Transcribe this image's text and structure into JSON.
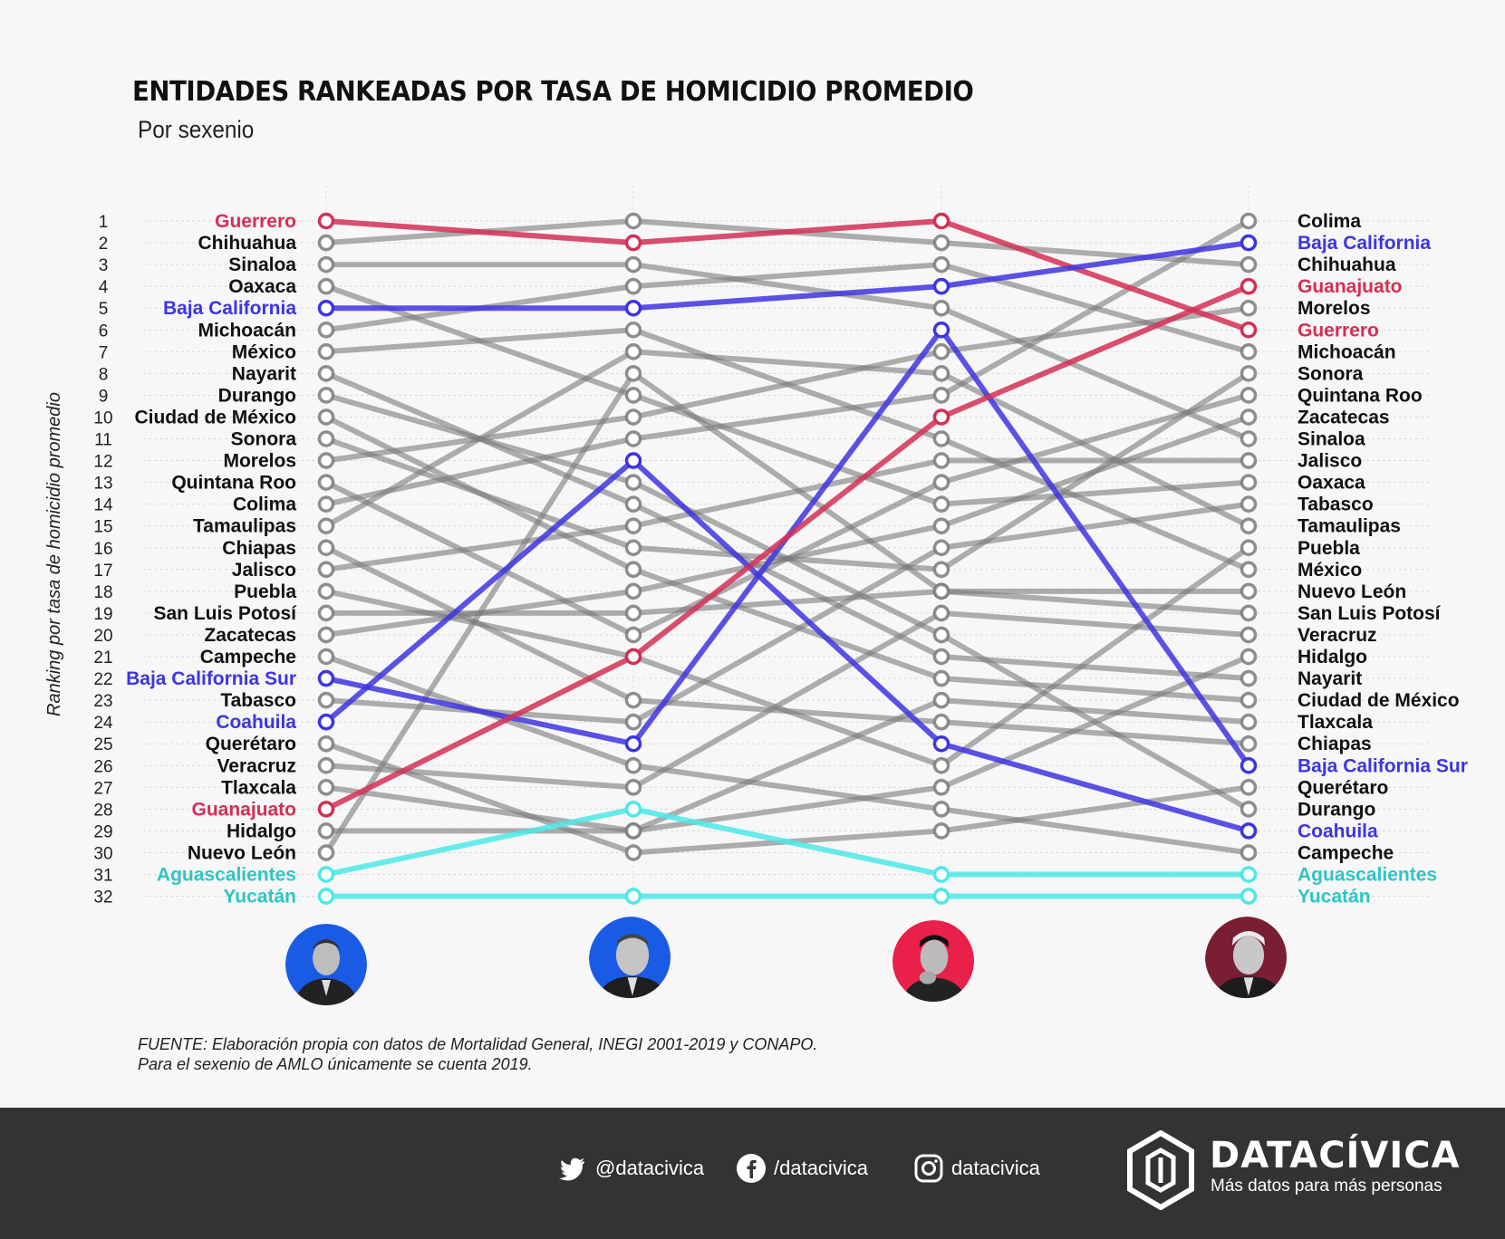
{
  "title": "ENTIDADES RANKEADAS POR TASA DE HOMICIDIO PROMEDIO",
  "subtitle": "Por sexenio",
  "y_axis_label": "Ranking por tasa de homicidio promedio",
  "source_line1": "FUENTE: Elaboración propia con datos de Mortalidad General, INEGI 2001-2019 y CONAPO.",
  "source_line2": "Para el sexenio de AMLO únicamente se cuenta 2019.",
  "colors": {
    "background": "#f7f7f7",
    "default_line": "#7a7a7a",
    "red": "#d32f55",
    "blue": "#3d35e0",
    "cyan": "#4de8e8",
    "cyan_text": "#2ec5c5",
    "footer_bg": "#333333",
    "portrait_fox": "#1a5be6",
    "portrait_calderon": "#1a5be6",
    "portrait_pena": "#e8204a",
    "portrait_amlo": "#7a1f33"
  },
  "portraits": [
    {
      "name": "fox-portrait",
      "color": "#1a5be6"
    },
    {
      "name": "calderon-portrait",
      "color": "#1a5be6"
    },
    {
      "name": "pena-nieto-portrait",
      "color": "#e8204a"
    },
    {
      "name": "amlo-portrait",
      "color": "#7a1f33"
    }
  ],
  "footer": {
    "twitter": "@datacivica",
    "facebook": "/datacivica",
    "instagram": "datacivica",
    "brand": "DATACÍVICA",
    "tagline": "Más datos para más personas"
  },
  "chart_data": {
    "type": "line",
    "ranks": [
      1,
      2,
      3,
      4,
      5,
      6,
      7,
      8,
      9,
      10,
      11,
      12,
      13,
      14,
      15,
      16,
      17,
      18,
      19,
      20,
      21,
      22,
      23,
      24,
      25,
      26,
      27,
      28,
      29,
      30,
      31,
      32
    ],
    "ylim": [
      1,
      32
    ],
    "grid": true,
    "left_labels": [
      "Guerrero",
      "Chihuahua",
      "Sinaloa",
      "Oaxaca",
      "Baja California",
      "Michoacán",
      "México",
      "Nayarit",
      "Durango",
      "Ciudad de México",
      "Sonora",
      "Morelos",
      "Quintana Roo",
      "Colima",
      "Tamaulipas",
      "Chiapas",
      "Jalisco",
      "Puebla",
      "San Luis Potosí",
      "Zacatecas",
      "Campeche",
      "Baja California Sur",
      "Tabasco",
      "Coahuila",
      "Querétaro",
      "Veracruz",
      "Tlaxcala",
      "Guanajuato",
      "Hidalgo",
      "Nuevo León",
      "Aguascalientes",
      "Yucatán"
    ],
    "right_labels": [
      "Colima",
      "Baja California",
      "Chihuahua",
      "Guanajuato",
      "Morelos",
      "Guerrero",
      "Michoacán",
      "Sonora",
      "Quintana Roo",
      "Zacatecas",
      "Sinaloa",
      "Jalisco",
      "Oaxaca",
      "Tabasco",
      "Tamaulipas",
      "Puebla",
      "México",
      "Nuevo León",
      "San Luis Potosí",
      "Veracruz",
      "Hidalgo",
      "Nayarit",
      "Ciudad de México",
      "Tlaxcala",
      "Chiapas",
      "Baja California Sur",
      "Querétaro",
      "Durango",
      "Coahuila",
      "Campeche",
      "Aguascalientes",
      "Yucatán"
    ],
    "series": [
      {
        "name": "Guerrero",
        "values": [
          1,
          2,
          1,
          6
        ],
        "color": "red"
      },
      {
        "name": "Chihuahua",
        "values": [
          2,
          1,
          2,
          3
        ],
        "color": "default"
      },
      {
        "name": "Sinaloa",
        "values": [
          3,
          3,
          5,
          11
        ],
        "color": "default"
      },
      {
        "name": "Oaxaca",
        "values": [
          4,
          9,
          14,
          13
        ],
        "color": "default"
      },
      {
        "name": "Baja California",
        "values": [
          5,
          5,
          4,
          2
        ],
        "color": "blue"
      },
      {
        "name": "Michoacán",
        "values": [
          6,
          4,
          3,
          7
        ],
        "color": "default"
      },
      {
        "name": "México",
        "values": [
          7,
          6,
          11,
          17
        ],
        "color": "default"
      },
      {
        "name": "Nayarit",
        "values": [
          8,
          14,
          21,
          22
        ],
        "color": "default"
      },
      {
        "name": "Durango",
        "values": [
          9,
          13,
          20,
          28
        ],
        "color": "default"
      },
      {
        "name": "Ciudad de México",
        "values": [
          10,
          17,
          22,
          23
        ],
        "color": "default"
      },
      {
        "name": "Sonora",
        "values": [
          11,
          16,
          17,
          8
        ],
        "color": "default"
      },
      {
        "name": "Morelos",
        "values": [
          12,
          10,
          7,
          5
        ],
        "color": "default"
      },
      {
        "name": "Quintana Roo",
        "values": [
          13,
          20,
          13,
          9
        ],
        "color": "default"
      },
      {
        "name": "Colima",
        "values": [
          14,
          11,
          9,
          1
        ],
        "color": "default"
      },
      {
        "name": "Tamaulipas",
        "values": [
          15,
          7,
          8,
          15
        ],
        "color": "default"
      },
      {
        "name": "Chiapas",
        "values": [
          16,
          23,
          24,
          25
        ],
        "color": "default"
      },
      {
        "name": "Jalisco",
        "values": [
          17,
          15,
          12,
          12
        ],
        "color": "default"
      },
      {
        "name": "Puebla",
        "values": [
          18,
          21,
          26,
          16
        ],
        "color": "default"
      },
      {
        "name": "San Luis Potosí",
        "values": [
          19,
          19,
          18,
          19
        ],
        "color": "default"
      },
      {
        "name": "Zacatecas",
        "values": [
          20,
          18,
          15,
          10
        ],
        "color": "default"
      },
      {
        "name": "Campeche",
        "values": [
          21,
          26,
          28,
          30
        ],
        "color": "default"
      },
      {
        "name": "Baja California Sur",
        "values": [
          22,
          25,
          6,
          26
        ],
        "color": "blue"
      },
      {
        "name": "Tabasco",
        "values": [
          23,
          24,
          16,
          14
        ],
        "color": "default"
      },
      {
        "name": "Coahuila",
        "values": [
          24,
          12,
          25,
          29
        ],
        "color": "blue"
      },
      {
        "name": "Querétaro",
        "values": [
          25,
          30,
          29,
          27
        ],
        "color": "default"
      },
      {
        "name": "Veracruz",
        "values": [
          26,
          27,
          19,
          20
        ],
        "color": "default"
      },
      {
        "name": "Tlaxcala",
        "values": [
          27,
          29,
          23,
          24
        ],
        "color": "default"
      },
      {
        "name": "Guanajuato",
        "values": [
          28,
          21,
          10,
          4
        ],
        "color": "red"
      },
      {
        "name": "Hidalgo",
        "values": [
          29,
          29,
          27,
          21
        ],
        "color": "default"
      },
      {
        "name": "Nuevo León",
        "values": [
          30,
          8,
          18,
          18
        ],
        "color": "default"
      },
      {
        "name": "Aguascalientes",
        "values": [
          31,
          28,
          31,
          31
        ],
        "color": "cyan"
      },
      {
        "name": "Yucatán",
        "values": [
          32,
          32,
          32,
          32
        ],
        "color": "cyan"
      }
    ]
  }
}
